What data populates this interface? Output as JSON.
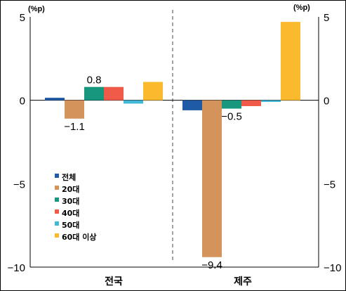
{
  "chart_data": {
    "type": "bar",
    "categories": [
      "전국",
      "제주"
    ],
    "series": [
      {
        "name": "전체",
        "color": "#1f5aa6",
        "values": [
          0.15,
          -0.6
        ]
      },
      {
        "name": "20대",
        "color": "#d4935a",
        "values": [
          -1.1,
          -9.4
        ]
      },
      {
        "name": "30대",
        "color": "#16977e",
        "values": [
          0.8,
          -0.5
        ]
      },
      {
        "name": "40대",
        "color": "#f05a48",
        "values": [
          0.8,
          -0.35
        ]
      },
      {
        "name": "50대",
        "color": "#41b8d8",
        "values": [
          -0.2,
          -0.1
        ]
      },
      {
        "name": "60대 이상",
        "color": "#fbb92e",
        "values": [
          1.1,
          4.7
        ]
      }
    ],
    "data_labels": [
      {
        "category": 0,
        "series": 1,
        "text": "−1.1",
        "color": "#000000"
      },
      {
        "category": 0,
        "series": 2,
        "text": "0.8",
        "color": "#000000"
      },
      {
        "category": 1,
        "series": 2,
        "text": "−0.5",
        "color": "#000000"
      },
      {
        "category": 1,
        "series": 1,
        "text": "−9.4",
        "color": "#c00000"
      }
    ],
    "y_left_unit": "(%p)",
    "y_right_unit": "(%p)",
    "ylim": [
      -10,
      5
    ],
    "yticks": [
      5,
      0,
      -5,
      -10
    ],
    "ytick_labels": [
      "5",
      "0",
      "−5",
      "−10"
    ],
    "legend_position": "inside-bottom-left",
    "grid": false
  }
}
